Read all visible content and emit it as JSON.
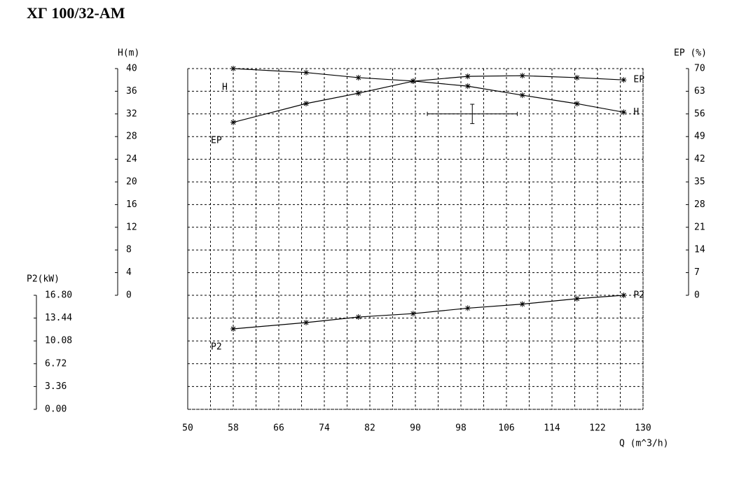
{
  "chart_data": {
    "type": "line",
    "title": "ХГ 100/32-АМ",
    "xlabel": "Q (m^3/h)",
    "ylabel": "H(m)",
    "y2label": "EP (%)",
    "y3label": "P2(kW)",
    "x": [
      58,
      70.8,
      80,
      89.6,
      99.2,
      108.8,
      118.4,
      126.6
    ],
    "series": [
      {
        "name": "H",
        "color": "#000000",
        "axis": "y",
        "values": [
          40,
          39.3,
          38.4,
          37.8,
          36.9,
          35.3,
          33.8,
          32.3
        ]
      },
      {
        "name": "EP",
        "color": "#000000",
        "axis": "y2",
        "values": [
          53.4,
          59.2,
          62.4,
          66.1,
          67.6,
          67.8,
          67.2,
          66.5
        ]
      },
      {
        "name": "P2",
        "color": "#000000",
        "axis": "y3",
        "values": [
          11.85,
          12.78,
          13.6,
          14.1,
          14.9,
          15.5,
          16.3,
          16.8
        ]
      }
    ],
    "operating_point": {
      "x": 100,
      "y": 32,
      "xerr": 7.9,
      "yerr": 1.7
    },
    "xlim": [
      50,
      130
    ],
    "xticks": [
      50,
      58,
      66,
      74,
      82,
      90,
      98,
      106,
      114,
      122,
      130
    ],
    "ylim": [
      0,
      40
    ],
    "yticks": [
      0,
      4,
      8,
      12,
      16,
      20,
      24,
      28,
      32,
      36,
      40
    ],
    "y2lim": [
      0,
      70
    ],
    "y2ticks": [
      0,
      7,
      14,
      21,
      28,
      35,
      42,
      49,
      56,
      63,
      70
    ],
    "y3lim": [
      0,
      16.8
    ],
    "y3ticks": [
      {
        "value": 0,
        "label": "0.00"
      },
      3.36,
      6.72,
      10.08,
      13.44,
      {
        "value": 16.8,
        "label": "16.80"
      }
    ],
    "grid": true
  }
}
